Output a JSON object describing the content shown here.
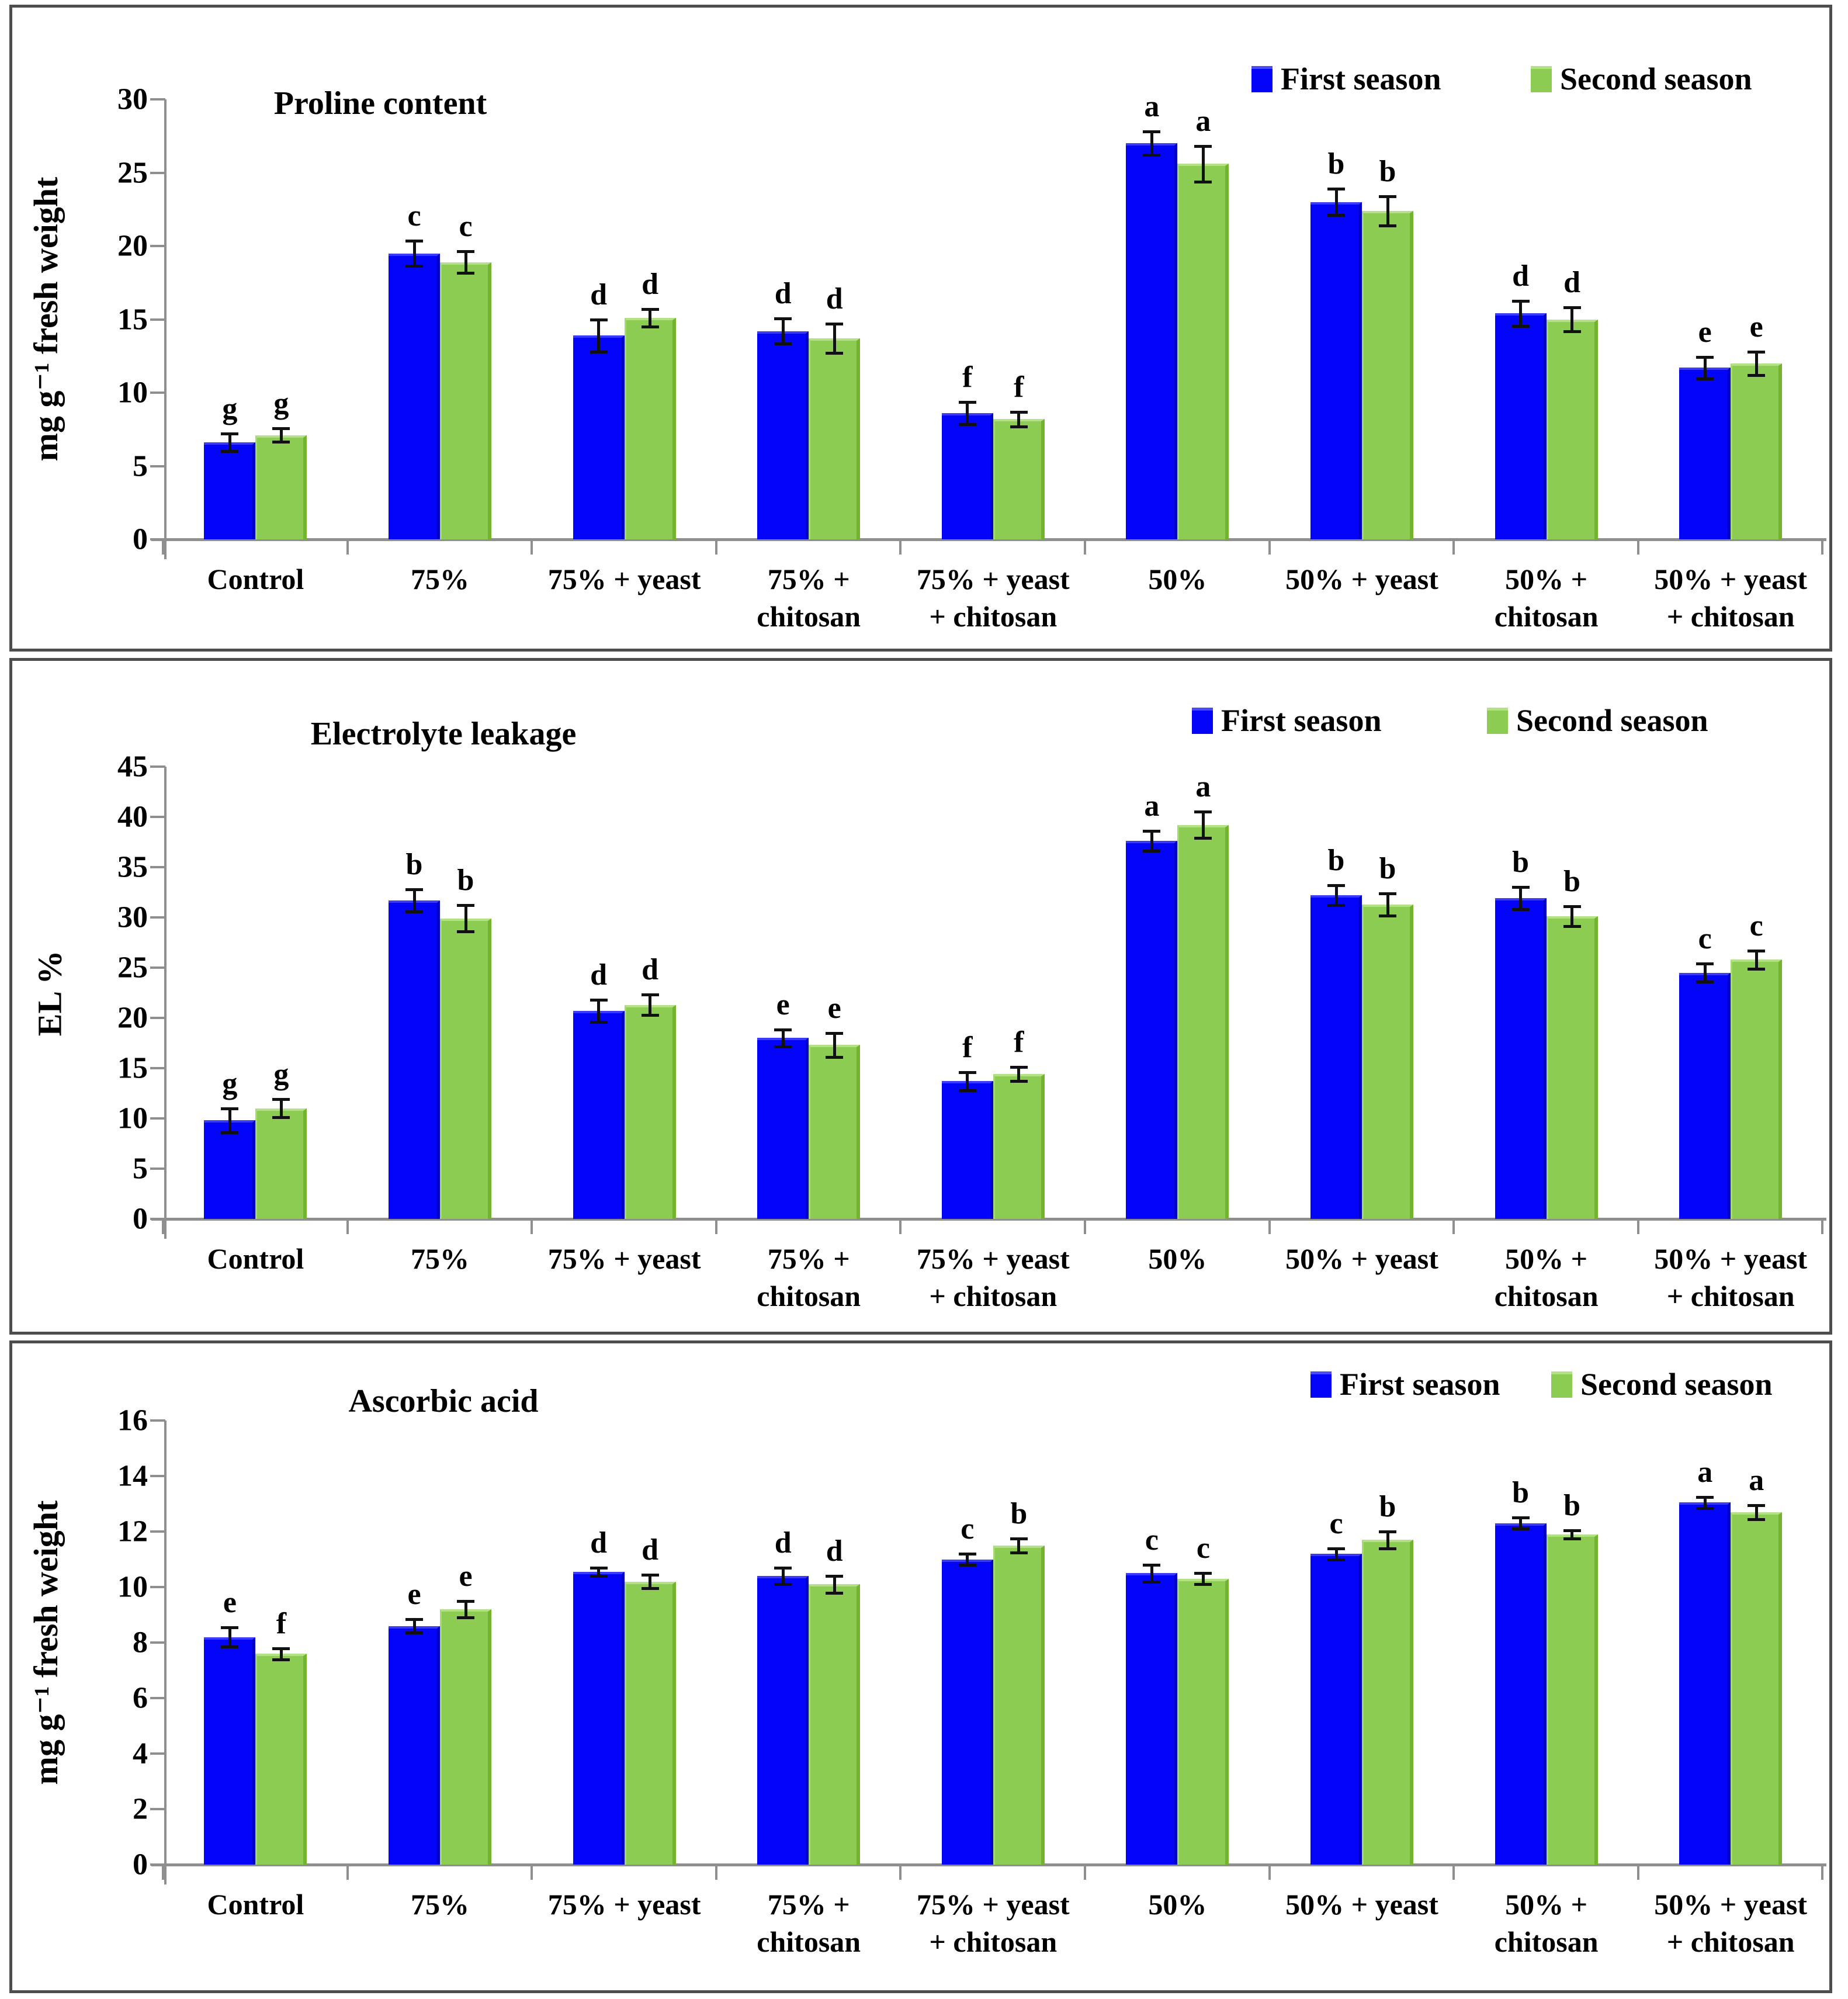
{
  "figure": {
    "legend": {
      "first": "First season",
      "second": "Second season"
    },
    "colors": {
      "first_season": "#0404f8",
      "second_season": "#8dcc52",
      "axis": "#8f8f8f",
      "error_bar": "#111111",
      "panel_border": "#4e4e4e",
      "text": "#000000"
    }
  },
  "chart_data": [
    {
      "type": "bar",
      "title": "Proline content",
      "ylabel": "mg g⁻¹ fresh weight",
      "xlabel": "",
      "ylim": [
        0,
        30
      ],
      "ystep": 5,
      "grid": false,
      "legend_position": "top-right",
      "categories": [
        "Control",
        "75%",
        "75% + yeast",
        "75% + chitosan",
        "75% + yeast + chitosan",
        "50%",
        "50% + yeast",
        "50% + chitosan",
        "50% + yeast + chitosan"
      ],
      "category_label_lines": [
        [
          "Control"
        ],
        [
          "75%"
        ],
        [
          "75% + yeast"
        ],
        [
          "75% +",
          "chitosan"
        ],
        [
          "75% + yeast",
          "+ chitosan"
        ],
        [
          "50%"
        ],
        [
          "50% + yeast"
        ],
        [
          "50% +",
          "chitosan"
        ],
        [
          "50% + yeast",
          "+ chitosan"
        ]
      ],
      "series": [
        {
          "name": "First season",
          "values": [
            6.6,
            19.5,
            13.9,
            14.2,
            8.6,
            27.0,
            23.0,
            15.4,
            11.7
          ],
          "errors": [
            0.6,
            0.85,
            1.1,
            0.85,
            0.75,
            0.8,
            0.9,
            0.85,
            0.75
          ],
          "letters": [
            "g",
            "c",
            "d",
            "d",
            "f",
            "a",
            "b",
            "d",
            "e"
          ]
        },
        {
          "name": "Second season",
          "values": [
            7.1,
            18.9,
            15.1,
            13.7,
            8.2,
            25.6,
            22.4,
            15.0,
            12.0
          ],
          "errors": [
            0.45,
            0.75,
            0.6,
            1.0,
            0.5,
            1.2,
            1.0,
            0.8,
            0.8
          ],
          "letters": [
            "g",
            "c",
            "d",
            "d",
            "f",
            "a",
            "b",
            "d",
            "e"
          ]
        }
      ]
    },
    {
      "type": "bar",
      "title": "Electrolyte leakage",
      "ylabel": "EL %",
      "xlabel": "",
      "ylim": [
        0,
        45
      ],
      "ystep": 5,
      "grid": false,
      "legend_position": "top-right",
      "categories": [
        "Control",
        "75%",
        "75% + yeast",
        "75% + chitosan",
        "75% + yeast + chitosan",
        "50%",
        "50% + yeast",
        "50% + chitosan",
        "50% + yeast + chitosan"
      ],
      "category_label_lines": [
        [
          "Control"
        ],
        [
          "75%"
        ],
        [
          "75% + yeast"
        ],
        [
          "75% +",
          "chitosan"
        ],
        [
          "75% + yeast",
          "+ chitosan"
        ],
        [
          "50%"
        ],
        [
          "50% + yeast"
        ],
        [
          "50% +",
          "chitosan"
        ],
        [
          "50% + yeast",
          "+ chitosan"
        ]
      ],
      "series": [
        {
          "name": "First season",
          "values": [
            9.8,
            31.7,
            20.7,
            18.0,
            13.7,
            37.6,
            32.2,
            31.9,
            24.5
          ],
          "errors": [
            1.2,
            1.1,
            1.1,
            0.85,
            0.9,
            1.0,
            1.0,
            1.1,
            0.9
          ],
          "letters": [
            "g",
            "b",
            "d",
            "e",
            "f",
            "a",
            "b",
            "b",
            "c"
          ]
        },
        {
          "name": "Second season",
          "values": [
            11.0,
            29.9,
            21.3,
            17.3,
            14.4,
            39.2,
            31.3,
            30.1,
            25.8
          ],
          "errors": [
            0.9,
            1.3,
            1.0,
            1.2,
            0.7,
            1.3,
            1.1,
            1.0,
            0.9
          ],
          "letters": [
            "g",
            "b",
            "d",
            "e",
            "f",
            "a",
            "b",
            "b",
            "c"
          ]
        }
      ]
    },
    {
      "type": "bar",
      "title": "Ascorbic acid",
      "ylabel": "mg g⁻¹ fresh weight",
      "xlabel": "",
      "ylim": [
        0,
        16
      ],
      "ystep": 2,
      "grid": false,
      "legend_position": "top-right",
      "categories": [
        "Control",
        "75%",
        "75% + yeast",
        "75% + chitosan",
        "75% + yeast + chitosan",
        "50%",
        "50% + yeast",
        "50% + chitosan",
        "50% + yeast + chitosan"
      ],
      "category_label_lines": [
        [
          "Control"
        ],
        [
          "75%"
        ],
        [
          "75% + yeast"
        ],
        [
          "75% +",
          "chitosan"
        ],
        [
          "75% + yeast",
          "+ chitosan"
        ],
        [
          "50%"
        ],
        [
          "50% + yeast"
        ],
        [
          "50% +",
          "chitosan"
        ],
        [
          "50% + yeast",
          "+ chitosan"
        ]
      ],
      "series": [
        {
          "name": "First season",
          "values": [
            8.2,
            8.6,
            10.55,
            10.4,
            11.0,
            10.5,
            11.2,
            12.3,
            13.05
          ],
          "errors": [
            0.35,
            0.25,
            0.15,
            0.3,
            0.2,
            0.3,
            0.2,
            0.2,
            0.2
          ],
          "letters": [
            "e",
            "e",
            "d",
            "d",
            "c",
            "c",
            "c",
            "b",
            "a"
          ]
        },
        {
          "name": "Second season",
          "values": [
            7.6,
            9.2,
            10.2,
            10.1,
            11.5,
            10.3,
            11.7,
            11.9,
            12.7
          ],
          "errors": [
            0.2,
            0.3,
            0.25,
            0.3,
            0.25,
            0.2,
            0.3,
            0.15,
            0.25
          ],
          "letters": [
            "f",
            "e",
            "d",
            "d",
            "b",
            "c",
            "b",
            "b",
            "a"
          ]
        }
      ]
    }
  ]
}
